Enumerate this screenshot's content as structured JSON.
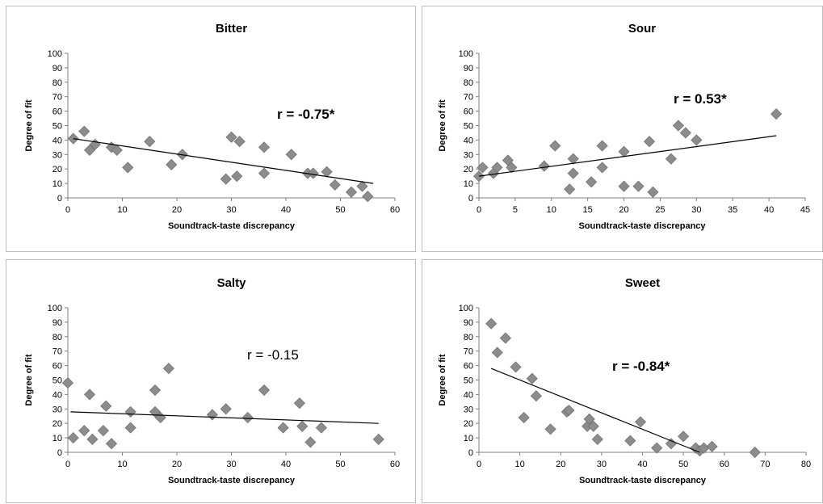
{
  "chart_data": [
    {
      "type": "scatter",
      "title": "Bitter",
      "xlabel": "Soundtrack-taste discrepancy",
      "ylabel": "Degree of fit",
      "xlim": [
        0,
        60
      ],
      "ylim": [
        0,
        100
      ],
      "xticks": [
        "0",
        "10",
        "20",
        "30",
        "40",
        "50",
        "60"
      ],
      "yticks": [
        "0",
        "10",
        "20",
        "30",
        "40",
        "50",
        "60",
        "70",
        "80",
        "90",
        "100"
      ],
      "annotation": "r = -0.75*",
      "annotation_bold": true,
      "grid": false,
      "trendline": {
        "x1": 1,
        "y1": 41,
        "x2": 56,
        "y2": 10
      },
      "points": [
        [
          1,
          41
        ],
        [
          3,
          46
        ],
        [
          4,
          33
        ],
        [
          5,
          37
        ],
        [
          8,
          35
        ],
        [
          9,
          33
        ],
        [
          11,
          21
        ],
        [
          15,
          39
        ],
        [
          19,
          23
        ],
        [
          21,
          30
        ],
        [
          29,
          13
        ],
        [
          30,
          42
        ],
        [
          31,
          15
        ],
        [
          31.5,
          39
        ],
        [
          36,
          17
        ],
        [
          36,
          35
        ],
        [
          41,
          30
        ],
        [
          44,
          17
        ],
        [
          45,
          17
        ],
        [
          47.5,
          18
        ],
        [
          49,
          9
        ],
        [
          52,
          4
        ],
        [
          54,
          8
        ],
        [
          55,
          1
        ]
      ]
    },
    {
      "type": "scatter",
      "title": "Sour",
      "xlabel": "Soundtrack-taste discrepancy",
      "ylabel": "Degree of fit",
      "xlim": [
        0,
        45
      ],
      "ylim": [
        0,
        100
      ],
      "xticks": [
        "0",
        "5",
        "10",
        "15",
        "20",
        "25",
        "30",
        "35",
        "40",
        "45"
      ],
      "yticks": [
        "0",
        "10",
        "20",
        "30",
        "40",
        "50",
        "60",
        "70",
        "80",
        "90",
        "100"
      ],
      "annotation": "r = 0.53*",
      "annotation_bold": true,
      "grid": false,
      "trendline": {
        "x1": 0,
        "y1": 15,
        "x2": 41,
        "y2": 43
      },
      "points": [
        [
          0,
          15
        ],
        [
          0.5,
          21
        ],
        [
          2,
          17
        ],
        [
          2.5,
          21
        ],
        [
          4,
          26
        ],
        [
          4.5,
          21
        ],
        [
          9,
          22
        ],
        [
          10.5,
          36
        ],
        [
          12.5,
          6
        ],
        [
          13,
          17
        ],
        [
          13,
          27
        ],
        [
          15.5,
          11
        ],
        [
          17,
          21
        ],
        [
          17,
          36
        ],
        [
          20,
          32
        ],
        [
          20,
          8
        ],
        [
          22,
          8
        ],
        [
          23.5,
          39
        ],
        [
          24,
          4
        ],
        [
          26.5,
          27
        ],
        [
          27.5,
          50
        ],
        [
          28.5,
          45
        ],
        [
          30,
          40
        ],
        [
          41,
          58
        ]
      ]
    },
    {
      "type": "scatter",
      "title": "Salty",
      "xlabel": "Soundtrack-taste discrepancy",
      "ylabel": "Degree of fit",
      "xlim": [
        0,
        60
      ],
      "ylim": [
        0,
        100
      ],
      "xticks": [
        "0",
        "10",
        "20",
        "30",
        "40",
        "50",
        "60"
      ],
      "yticks": [
        "0",
        "10",
        "20",
        "30",
        "40",
        "50",
        "60",
        "70",
        "80",
        "90",
        "100"
      ],
      "annotation": "r = -0.15",
      "annotation_bold": false,
      "grid": false,
      "trendline": {
        "x1": 0.5,
        "y1": 28,
        "x2": 57,
        "y2": 20
      },
      "points": [
        [
          0,
          48
        ],
        [
          1,
          10
        ],
        [
          3,
          15
        ],
        [
          4,
          40
        ],
        [
          4.5,
          9
        ],
        [
          6.5,
          15
        ],
        [
          7,
          32
        ],
        [
          8,
          6
        ],
        [
          11.5,
          17
        ],
        [
          11.5,
          28
        ],
        [
          16,
          28
        ],
        [
          16,
          43
        ],
        [
          17,
          24
        ],
        [
          18.5,
          58
        ],
        [
          26.5,
          26
        ],
        [
          29,
          30
        ],
        [
          33,
          24
        ],
        [
          36,
          43
        ],
        [
          39.5,
          17
        ],
        [
          42.5,
          34
        ],
        [
          43,
          18
        ],
        [
          44.5,
          7
        ],
        [
          46.5,
          17
        ],
        [
          57,
          9
        ]
      ]
    },
    {
      "type": "scatter",
      "title": "Sweet",
      "xlabel": "Soundtrack-taste discrepancy",
      "ylabel": "Degree of fit",
      "xlim": [
        0,
        80
      ],
      "ylim": [
        0,
        100
      ],
      "xticks": [
        "0",
        "10",
        "20",
        "30",
        "40",
        "50",
        "60",
        "70",
        "80"
      ],
      "yticks": [
        "0",
        "10",
        "20",
        "30",
        "40",
        "50",
        "60",
        "70",
        "80",
        "90",
        "100"
      ],
      "annotation": "r = -0.84*",
      "annotation_bold": true,
      "grid": false,
      "trendline": {
        "x1": 3,
        "y1": 58,
        "x2": 54,
        "y2": 0
      },
      "points": [
        [
          3,
          89
        ],
        [
          4.5,
          69
        ],
        [
          6.5,
          79
        ],
        [
          9,
          59
        ],
        [
          11,
          24
        ],
        [
          13,
          51
        ],
        [
          14,
          39
        ],
        [
          17.5,
          16
        ],
        [
          21.5,
          28
        ],
        [
          22,
          29
        ],
        [
          26.5,
          18
        ],
        [
          27,
          23
        ],
        [
          28,
          18
        ],
        [
          29,
          9
        ],
        [
          37,
          8
        ],
        [
          39.5,
          21
        ],
        [
          43.5,
          3
        ],
        [
          47,
          6
        ],
        [
          50,
          11
        ],
        [
          53,
          3
        ],
        [
          54,
          1
        ],
        [
          55,
          3
        ],
        [
          57,
          4
        ],
        [
          67.5,
          0
        ]
      ]
    }
  ]
}
